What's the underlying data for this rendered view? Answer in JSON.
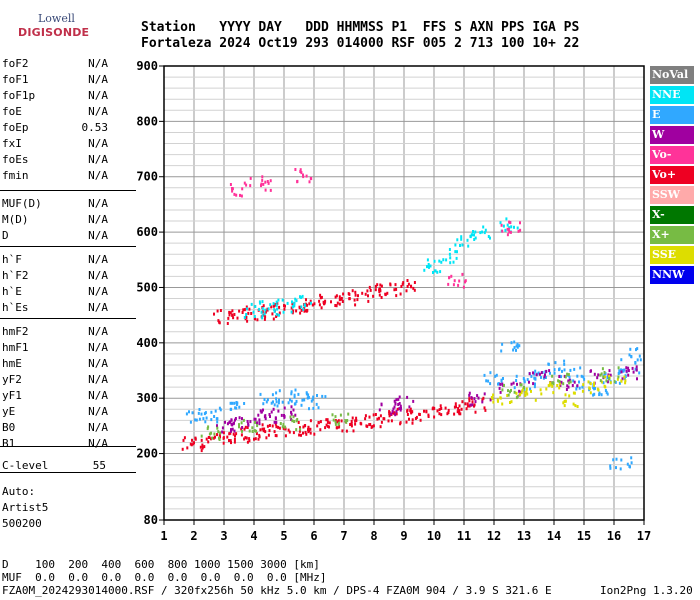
{
  "logo": {
    "line1": "Lowell",
    "line2": "DIGISONDE"
  },
  "header": {
    "line1": "Station   YYYY DAY   DDD HHMMSS P1  FFS S AXN PPS IGA PS",
    "line2": "Fortaleza 2024 Oct19 293 014000 RSF 005 2 713 100 10+ 22"
  },
  "params": {
    "group1": [
      {
        "name": "foF2",
        "value": "N/A"
      },
      {
        "name": "foF1",
        "value": "N/A"
      },
      {
        "name": "foF1p",
        "value": "N/A"
      },
      {
        "name": "foE",
        "value": "N/A"
      },
      {
        "name": "foEp",
        "value": "0.53"
      },
      {
        "name": "fxI",
        "value": "N/A"
      },
      {
        "name": "foEs",
        "value": "N/A"
      },
      {
        "name": "fmin",
        "value": "N/A"
      }
    ],
    "group2": [
      {
        "name": "MUF(D)",
        "value": "N/A"
      },
      {
        "name": "M(D)",
        "value": "N/A"
      },
      {
        "name": "D",
        "value": "N/A"
      }
    ],
    "group3": [
      {
        "name": "h`F",
        "value": "N/A"
      },
      {
        "name": "h`F2",
        "value": "N/A"
      },
      {
        "name": "h`E",
        "value": "N/A"
      },
      {
        "name": "h`Es",
        "value": "N/A"
      }
    ],
    "group4": [
      {
        "name": "hmF2",
        "value": "N/A"
      },
      {
        "name": "hmF1",
        "value": "N/A"
      },
      {
        "name": "hmE",
        "value": "N/A"
      },
      {
        "name": "yF2",
        "value": "N/A"
      },
      {
        "name": "yF1",
        "value": "N/A"
      },
      {
        "name": "yE",
        "value": "N/A"
      },
      {
        "name": "B0",
        "value": "N/A"
      },
      {
        "name": "B1",
        "value": "N/A"
      }
    ],
    "clevel": {
      "name": "C-level",
      "value": "55"
    },
    "auto": {
      "line1": "Auto:",
      "line2": "Artist5",
      "line3": "500200"
    }
  },
  "legend": [
    {
      "label": "NoVal",
      "color": "#7f7f7f"
    },
    {
      "label": "NNE",
      "color": "#00e5f5"
    },
    {
      "label": "E",
      "color": "#30a8ff"
    },
    {
      "label": "W",
      "color": "#a000a0"
    },
    {
      "label": "Vo-",
      "color": "#ff3399"
    },
    {
      "label": "Vo+",
      "color": "#ee0022"
    },
    {
      "label": "SSW",
      "color": "#ffaaaa"
    },
    {
      "label": "X-",
      "color": "#007700"
    },
    {
      "label": "X+",
      "color": "#77bb44"
    },
    {
      "label": "SSE",
      "color": "#dddd00"
    },
    {
      "label": "NNW",
      "color": "#0000ee"
    }
  ],
  "footer": {
    "line1": "D    100  200  400  600  800 1000 1500 3000 [km]",
    "line2": "MUF  0.0  0.0  0.0  0.0  0.0  0.0  0.0  0.0 [MHz]",
    "line3": "FZA0M_2024293014000.RSF / 320fx256h 50 kHz 5.0 km / DPS-4 FZA0M 904 / 3.9 S 321.6 E",
    "version": "Ion2Png 1.3.20"
  },
  "chart_data": {
    "type": "scatter",
    "x_ticks": [
      1,
      2,
      3,
      4,
      5,
      6,
      7,
      8,
      9,
      10,
      11,
      12,
      13,
      14,
      15,
      16,
      17
    ],
    "y_ticks": [
      80,
      200,
      300,
      400,
      500,
      600,
      700,
      800,
      900
    ],
    "xlim": [
      1,
      17
    ],
    "ylim": [
      80,
      900
    ],
    "grid": true,
    "legend_position": "right",
    "traces": [
      {
        "color": "#ee0022",
        "points": [
          [
            1.9,
            220
          ],
          [
            2.5,
            225
          ],
          [
            3.0,
            230
          ],
          [
            3.5,
            235
          ],
          [
            4.0,
            238
          ],
          [
            4.5,
            242
          ],
          [
            5.0,
            245
          ],
          [
            5.5,
            248
          ],
          [
            6.0,
            250
          ],
          [
            6.5,
            252
          ],
          [
            7.0,
            255
          ],
          [
            7.5,
            258
          ],
          [
            8.0,
            262
          ],
          [
            8.5,
            266
          ],
          [
            9.0,
            270
          ],
          [
            9.5,
            274
          ],
          [
            10.0,
            278
          ],
          [
            10.5,
            282
          ],
          [
            11.0,
            286
          ],
          [
            11.5,
            290
          ]
        ]
      },
      {
        "color": "#30a8ff",
        "points": [
          [
            2.0,
            270
          ],
          [
            2.5,
            272
          ],
          [
            3.5,
            285
          ],
          [
            4.5,
            300
          ],
          [
            5.0,
            305
          ],
          [
            5.6,
            300
          ],
          [
            6.0,
            295
          ],
          [
            12.0,
            340
          ],
          [
            12.5,
            395
          ],
          [
            13.0,
            330
          ],
          [
            13.5,
            340
          ],
          [
            14.0,
            360
          ],
          [
            14.5,
            345
          ],
          [
            15.0,
            330
          ],
          [
            15.5,
            320
          ],
          [
            16.0,
            340
          ],
          [
            16.5,
            360
          ],
          [
            16.8,
            380
          ],
          [
            16.2,
            185
          ]
        ]
      },
      {
        "color": "#a000a0",
        "points": [
          [
            3.0,
            250
          ],
          [
            3.5,
            255
          ],
          [
            4.0,
            265
          ],
          [
            4.5,
            270
          ],
          [
            5.0,
            275
          ],
          [
            8.5,
            285
          ],
          [
            9.0,
            295
          ],
          [
            11.5,
            300
          ],
          [
            12.5,
            320
          ],
          [
            13.5,
            340
          ],
          [
            14.5,
            330
          ],
          [
            15.5,
            340
          ],
          [
            16.5,
            350
          ]
        ]
      },
      {
        "color": "#dddd00",
        "points": [
          [
            12.2,
            300
          ],
          [
            13.0,
            310
          ],
          [
            13.8,
            320
          ],
          [
            14.6,
            300
          ],
          [
            15.2,
            320
          ],
          [
            16.0,
            330
          ]
        ]
      },
      {
        "color": "#77bb44",
        "points": [
          [
            2.5,
            240
          ],
          [
            3.8,
            250
          ],
          [
            5.2,
            258
          ],
          [
            6.8,
            262
          ],
          [
            12.6,
            315
          ],
          [
            14.2,
            340
          ],
          [
            15.8,
            345
          ]
        ]
      },
      {
        "color": "#ee0022",
        "points": [
          [
            3.0,
            450
          ],
          [
            3.5,
            452
          ],
          [
            4.0,
            455
          ],
          [
            4.5,
            458
          ],
          [
            5.0,
            462
          ],
          [
            5.5,
            468
          ],
          [
            6.0,
            472
          ],
          [
            6.5,
            476
          ],
          [
            7.0,
            480
          ],
          [
            7.5,
            485
          ],
          [
            8.0,
            495
          ],
          [
            8.5,
            500
          ],
          [
            9.0,
            505
          ]
        ]
      },
      {
        "color": "#00e5f5",
        "points": [
          [
            4.0,
            460
          ],
          [
            4.5,
            465
          ],
          [
            5.0,
            470
          ],
          [
            5.5,
            475
          ],
          [
            10.0,
            540
          ],
          [
            10.5,
            560
          ],
          [
            11.0,
            590
          ],
          [
            11.5,
            600
          ],
          [
            12.5,
            615
          ]
        ]
      },
      {
        "color": "#ff3399",
        "points": [
          [
            3.5,
            680
          ],
          [
            4.2,
            690
          ],
          [
            5.7,
            705
          ],
          [
            12.5,
            610
          ],
          [
            10.7,
            515
          ]
        ]
      }
    ]
  }
}
